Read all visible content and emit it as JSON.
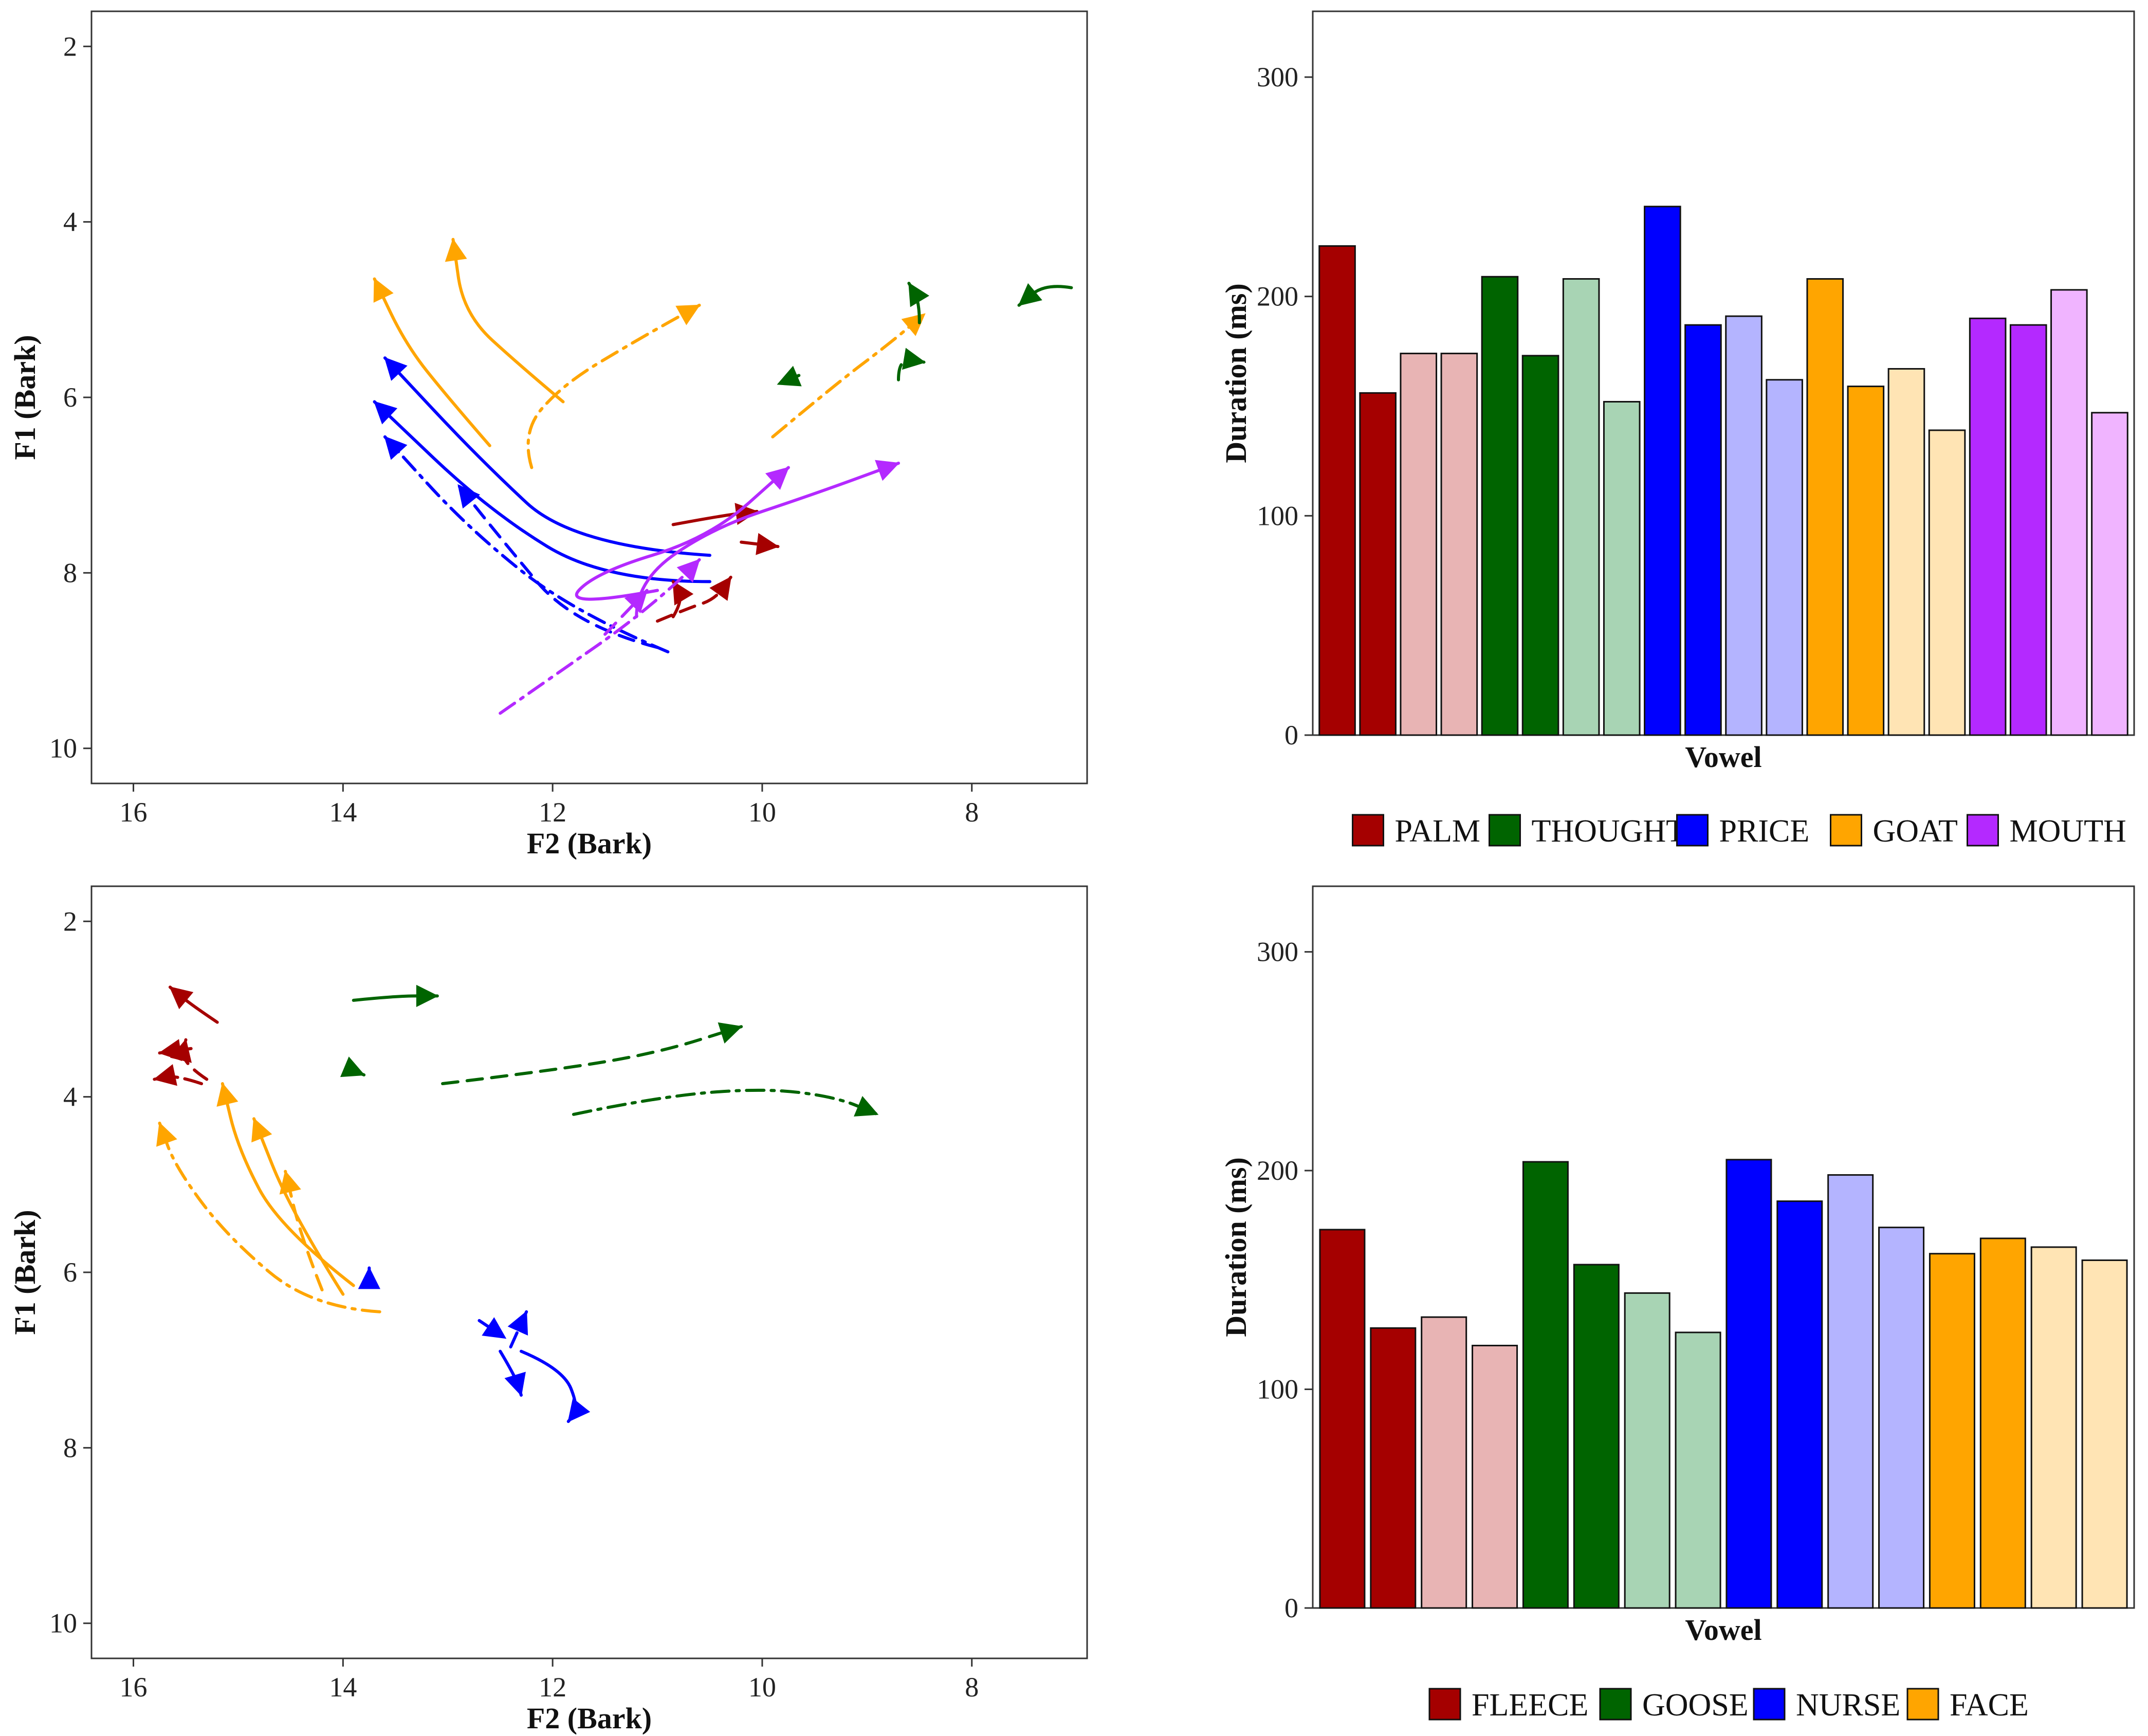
{
  "colors": {
    "PALM": "#a50000",
    "PALM_light": "#e8b4b4",
    "THOUGHT": "#006400",
    "THOUGHT_light": "#a8d4b4",
    "PRICE": "#0000ff",
    "PRICE_light": "#b4b4ff",
    "GOAT": "#ffa500",
    "GOAT_light": "#ffe4b4",
    "MOUTH": "#b429ff",
    "MOUTH_light": "#f0b4ff"
  },
  "chart_data": [
    {
      "type": "line",
      "xlabel": "F2 (Bark)",
      "ylabel": "F1 (Bark)",
      "xlim": [
        16.4,
        6.9
      ],
      "ylim": [
        1.6,
        10.4
      ],
      "x_reversed": true,
      "y_reversed": true,
      "xticks": [
        16,
        14,
        12,
        10,
        8
      ],
      "yticks": [
        2,
        4,
        6,
        8,
        10
      ],
      "grid": false,
      "series": [
        {
          "color": "GOAT",
          "dash": "solid",
          "points": [
            [
              12.6,
              6.55
            ],
            [
              13.0,
              6.0
            ],
            [
              13.4,
              5.4
            ],
            [
              13.7,
              4.65
            ]
          ]
        },
        {
          "color": "GOAT",
          "dash": "solid",
          "points": [
            [
              11.9,
              6.05
            ],
            [
              12.3,
              5.65
            ],
            [
              12.85,
              5.05
            ],
            [
              12.95,
              4.2
            ]
          ]
        },
        {
          "color": "GOAT",
          "dash": "dotdash",
          "points": [
            [
              12.2,
              6.8
            ],
            [
              12.3,
              6.4
            ],
            [
              11.9,
              5.85
            ],
            [
              11.2,
              5.35
            ],
            [
              10.6,
              4.95
            ]
          ]
        },
        {
          "color": "GOAT",
          "dash": "dotdash",
          "points": [
            [
              9.9,
              6.45
            ],
            [
              9.3,
              5.85
            ],
            [
              8.8,
              5.4
            ],
            [
              8.45,
              5.05
            ]
          ]
        },
        {
          "color": "PRICE",
          "dash": "solid",
          "points": [
            [
              10.5,
              7.8
            ],
            [
              11.8,
              7.7
            ],
            [
              12.7,
              6.7
            ],
            [
              13.6,
              5.55
            ]
          ]
        },
        {
          "color": "PRICE",
          "dash": "solid",
          "points": [
            [
              10.5,
              8.1
            ],
            [
              11.5,
              8.1
            ],
            [
              12.6,
              7.3
            ],
            [
              13.7,
              6.05
            ]
          ]
        },
        {
          "color": "PRICE",
          "dash": "dotdash",
          "points": [
            [
              10.9,
              8.9
            ],
            [
              11.8,
              8.45
            ],
            [
              12.8,
              7.5
            ],
            [
              13.6,
              6.45
            ]
          ]
        },
        {
          "color": "PRICE",
          "dash": "dashed",
          "points": [
            [
              11.0,
              8.85
            ],
            [
              11.8,
              8.6
            ],
            [
              12.5,
              7.6
            ],
            [
              12.9,
              7.0
            ]
          ]
        },
        {
          "color": "PALM",
          "dash": "solid",
          "points": [
            [
              10.85,
              7.45
            ],
            [
              10.4,
              7.35
            ],
            [
              10.05,
              7.3
            ]
          ]
        },
        {
          "color": "PALM",
          "dash": "solid",
          "points": [
            [
              10.2,
              7.65
            ],
            [
              9.85,
              7.7
            ]
          ]
        },
        {
          "color": "PALM",
          "dash": "dashed",
          "points": [
            [
              11.0,
              8.55
            ],
            [
              10.7,
              8.4
            ],
            [
              10.45,
              8.3
            ],
            [
              10.3,
              8.05
            ]
          ]
        },
        {
          "color": "PALM",
          "dash": "dotdash",
          "points": [
            [
              10.85,
              8.5
            ],
            [
              10.75,
              8.3
            ],
            [
              10.85,
              8.1
            ]
          ]
        },
        {
          "color": "MOUTH",
          "dash": "solid",
          "points": [
            [
              11.2,
              8.5
            ],
            [
              11.2,
              8.1
            ],
            [
              10.5,
              7.5
            ],
            [
              9.5,
              7.1
            ],
            [
              8.7,
              6.75
            ]
          ]
        },
        {
          "color": "MOUTH",
          "dash": "solid",
          "points": [
            [
              11.0,
              8.2
            ],
            [
              11.9,
              8.4
            ],
            [
              11.6,
              8.0
            ],
            [
              10.5,
              7.6
            ],
            [
              9.75,
              6.8
            ]
          ]
        },
        {
          "color": "MOUTH",
          "dash": "dotdash",
          "points": [
            [
              12.5,
              9.6
            ],
            [
              11.9,
              9.1
            ],
            [
              11.3,
              8.6
            ],
            [
              10.8,
              8.1
            ],
            [
              10.6,
              7.85
            ]
          ]
        },
        {
          "color": "MOUTH",
          "dash": "dashed",
          "points": [
            [
              11.5,
              8.7
            ],
            [
              11.3,
              8.45
            ],
            [
              11.1,
              8.2
            ]
          ]
        },
        {
          "color": "THOUGHT",
          "dash": "solid",
          "points": [
            [
              8.5,
              5.15
            ],
            [
              8.5,
              4.9
            ],
            [
              8.6,
              4.7
            ]
          ]
        },
        {
          "color": "THOUGHT",
          "dash": "solid",
          "points": [
            [
              7.05,
              4.75
            ],
            [
              7.3,
              4.7
            ],
            [
              7.55,
              4.95
            ]
          ]
        },
        {
          "color": "THOUGHT",
          "dash": "dashed",
          "points": [
            [
              8.7,
              5.8
            ],
            [
              8.7,
              5.55
            ],
            [
              8.45,
              5.6
            ]
          ]
        },
        {
          "color": "THOUGHT",
          "dash": "dotdash",
          "points": [
            [
              9.65,
              5.75
            ],
            [
              9.85,
              5.85
            ]
          ]
        }
      ]
    },
    {
      "type": "bar",
      "xlabel": "Vowel",
      "ylabel": "Duration (ms)",
      "ylim": [
        0,
        330
      ],
      "yticks": [
        0,
        100,
        200,
        300
      ],
      "legend_position": "bottom",
      "legend": [
        "PALM",
        "THOUGHT",
        "PRICE",
        "GOAT",
        "MOUTH"
      ],
      "bars": [
        {
          "color": "PALM",
          "value": 223
        },
        {
          "color": "PALM",
          "value": 156
        },
        {
          "color": "PALM_light",
          "value": 174
        },
        {
          "color": "PALM_light",
          "value": 174
        },
        {
          "color": "THOUGHT",
          "value": 209
        },
        {
          "color": "THOUGHT",
          "value": 173
        },
        {
          "color": "THOUGHT_light",
          "value": 208
        },
        {
          "color": "THOUGHT_light",
          "value": 152
        },
        {
          "color": "PRICE",
          "value": 241
        },
        {
          "color": "PRICE",
          "value": 187
        },
        {
          "color": "PRICE_light",
          "value": 191
        },
        {
          "color": "PRICE_light",
          "value": 162
        },
        {
          "color": "GOAT",
          "value": 208
        },
        {
          "color": "GOAT",
          "value": 159
        },
        {
          "color": "GOAT_light",
          "value": 167
        },
        {
          "color": "GOAT_light",
          "value": 139
        },
        {
          "color": "MOUTH",
          "value": 190
        },
        {
          "color": "MOUTH",
          "value": 187
        },
        {
          "color": "MOUTH_light",
          "value": 203
        },
        {
          "color": "MOUTH_light",
          "value": 147
        }
      ]
    },
    {
      "type": "line",
      "xlabel": "F2 (Bark)",
      "ylabel": "F1 (Bark)",
      "xlim": [
        16.4,
        6.9
      ],
      "ylim": [
        1.6,
        10.4
      ],
      "x_reversed": true,
      "y_reversed": true,
      "xticks": [
        16,
        14,
        12,
        10,
        8
      ],
      "yticks": [
        2,
        4,
        6,
        8,
        10
      ],
      "grid": false,
      "series": [
        {
          "color": "PALM",
          "dash": "solid",
          "points": [
            [
              15.2,
              3.15
            ],
            [
              15.45,
              2.95
            ],
            [
              15.65,
              2.75
            ]
          ]
        },
        {
          "color": "PALM",
          "dash": "dashed",
          "points": [
            [
              15.3,
              3.8
            ],
            [
              15.55,
              3.6
            ],
            [
              15.5,
              3.35
            ]
          ]
        },
        {
          "color": "PALM",
          "dash": "dashed",
          "points": [
            [
              15.45,
              3.45
            ],
            [
              15.75,
              3.5
            ]
          ]
        },
        {
          "color": "PALM",
          "dash": "dotdash",
          "points": [
            [
              15.35,
              3.85
            ],
            [
              15.6,
              3.75
            ],
            [
              15.8,
              3.8
            ]
          ]
        },
        {
          "color": "THOUGHT",
          "dash": "solid",
          "points": [
            [
              13.9,
              2.9
            ],
            [
              13.5,
              2.85
            ],
            [
              13.1,
              2.85
            ]
          ]
        },
        {
          "color": "THOUGHT",
          "dash": "dashed",
          "points": [
            [
              13.9,
              3.7
            ],
            [
              13.8,
              3.75
            ]
          ]
        },
        {
          "color": "THOUGHT",
          "dash": "dashed",
          "points": [
            [
              13.05,
              3.85
            ],
            [
              12.0,
              3.7
            ],
            [
              11.0,
              3.5
            ],
            [
              10.2,
              3.2
            ]
          ]
        },
        {
          "color": "THOUGHT",
          "dash": "dotdash",
          "points": [
            [
              11.8,
              4.2
            ],
            [
              11.0,
              4.0
            ],
            [
              10.0,
              3.9
            ],
            [
              9.3,
              4.0
            ],
            [
              8.9,
              4.2
            ]
          ]
        },
        {
          "color": "GOAT",
          "dash": "solid",
          "points": [
            [
              13.9,
              6.15
            ],
            [
              14.6,
              5.5
            ],
            [
              15.0,
              4.6
            ],
            [
              15.15,
              3.85
            ]
          ]
        },
        {
          "color": "GOAT",
          "dash": "solid",
          "points": [
            [
              14.0,
              6.25
            ],
            [
              14.5,
              5.3
            ],
            [
              14.85,
              4.25
            ]
          ]
        },
        {
          "color": "GOAT",
          "dash": "dashed",
          "points": [
            [
              14.2,
              6.2
            ],
            [
              14.4,
              5.6
            ],
            [
              14.55,
              4.85
            ]
          ]
        },
        {
          "color": "GOAT",
          "dash": "dotdash",
          "points": [
            [
              13.65,
              6.45
            ],
            [
              14.3,
              6.4
            ],
            [
              15.1,
              5.6
            ],
            [
              15.6,
              4.8
            ],
            [
              15.75,
              4.3
            ]
          ]
        },
        {
          "color": "PRICE",
          "dash": "solid",
          "points": [
            [
              12.3,
              6.9
            ],
            [
              11.9,
              7.1
            ],
            [
              11.75,
              7.55
            ],
            [
              11.85,
              7.7
            ]
          ]
        },
        {
          "color": "PRICE",
          "dash": "solid",
          "points": [
            [
              12.5,
              6.9
            ],
            [
              12.35,
              7.2
            ],
            [
              12.3,
              7.4
            ]
          ]
        },
        {
          "color": "PRICE",
          "dash": "dashed",
          "points": [
            [
              12.4,
              6.85
            ],
            [
              12.25,
              6.45
            ]
          ]
        },
        {
          "color": "PRICE",
          "dash": "dotdash",
          "points": [
            [
              12.7,
              6.55
            ],
            [
              12.45,
              6.75
            ]
          ]
        },
        {
          "color": "PRICE",
          "dash": "solid",
          "points": [
            [
              13.75,
              6.05
            ],
            [
              13.75,
              5.95
            ]
          ]
        }
      ]
    },
    {
      "type": "bar",
      "xlabel": "Vowel",
      "ylabel": "Duration (ms)",
      "ylim": [
        0,
        330
      ],
      "yticks": [
        0,
        100,
        200,
        300
      ],
      "legend_position": "bottom",
      "legend": [
        "FLEECE",
        "GOOSE",
        "NURSE",
        "FACE"
      ],
      "legend_colors": [
        "PALM",
        "THOUGHT",
        "PRICE",
        "GOAT"
      ],
      "bars": [
        {
          "color": "PALM",
          "value": 173
        },
        {
          "color": "PALM",
          "value": 128
        },
        {
          "color": "PALM_light",
          "value": 133
        },
        {
          "color": "PALM_light",
          "value": 120
        },
        {
          "color": "THOUGHT",
          "value": 204
        },
        {
          "color": "THOUGHT",
          "value": 157
        },
        {
          "color": "THOUGHT_light",
          "value": 144
        },
        {
          "color": "THOUGHT_light",
          "value": 126
        },
        {
          "color": "PRICE",
          "value": 205
        },
        {
          "color": "PRICE",
          "value": 186
        },
        {
          "color": "PRICE_light",
          "value": 198
        },
        {
          "color": "PRICE_light",
          "value": 174
        },
        {
          "color": "GOAT",
          "value": 162
        },
        {
          "color": "GOAT",
          "value": 169
        },
        {
          "color": "GOAT_light",
          "value": 165
        },
        {
          "color": "GOAT_light",
          "value": 159
        }
      ]
    }
  ]
}
